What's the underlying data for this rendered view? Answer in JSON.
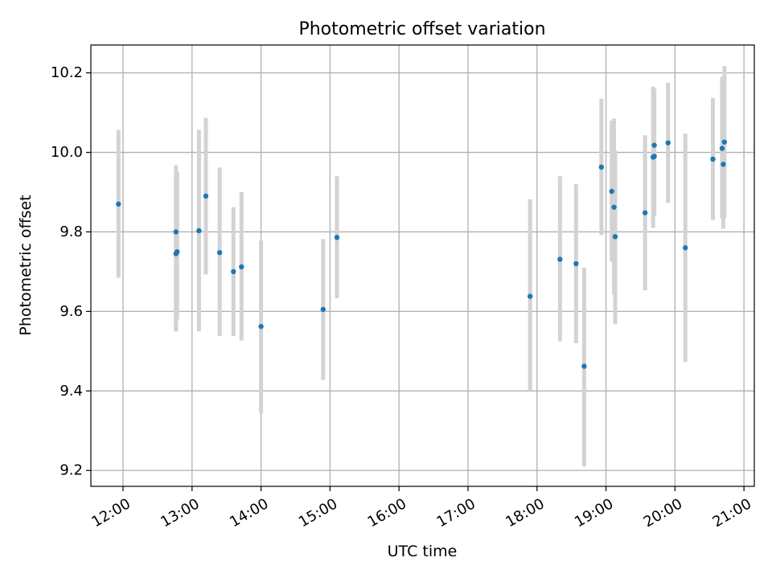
{
  "chart_data": {
    "type": "scatter",
    "title": "Photometric offset variation",
    "xlabel": "UTC time",
    "ylabel": "Photometric offset",
    "x_ticks": [
      "12:00",
      "13:00",
      "14:00",
      "15:00",
      "16:00",
      "17:00",
      "18:00",
      "19:00",
      "20:00",
      "21:00"
    ],
    "xlim": [
      "11:32",
      "21:09"
    ],
    "y_ticks": [
      "9.2",
      "9.4",
      "9.6",
      "9.8",
      "10.0",
      "10.2"
    ],
    "ylim": [
      9.16,
      10.27
    ],
    "grid": true,
    "colors": {
      "point": "#1f77b4",
      "errorbar": "#d3d3d3",
      "grid": "#b0b0b0",
      "axes": "#000000"
    },
    "points": [
      {
        "x": "11:56",
        "y": 9.87,
        "yerr_low": 9.685,
        "yerr_high": 10.057
      },
      {
        "x": "12:46",
        "y": 9.8,
        "yerr_low": 9.55,
        "yerr_high": 9.968
      },
      {
        "x": "12:46",
        "y": 9.745,
        "yerr_low": 9.55,
        "yerr_high": 9.94
      },
      {
        "x": "12:47",
        "y": 9.75,
        "yerr_low": 9.58,
        "yerr_high": 9.95
      },
      {
        "x": "13:06",
        "y": 9.803,
        "yerr_low": 9.55,
        "yerr_high": 10.057
      },
      {
        "x": "13:12",
        "y": 9.89,
        "yerr_low": 9.693,
        "yerr_high": 10.087
      },
      {
        "x": "13:24",
        "y": 9.748,
        "yerr_low": 9.538,
        "yerr_high": 9.962
      },
      {
        "x": "13:36",
        "y": 9.7,
        "yerr_low": 9.538,
        "yerr_high": 9.862
      },
      {
        "x": "13:43",
        "y": 9.712,
        "yerr_low": 9.527,
        "yerr_high": 9.9
      },
      {
        "x": "14:00",
        "y": 9.562,
        "yerr_low": 9.343,
        "yerr_high": 9.778
      },
      {
        "x": "14:54",
        "y": 9.605,
        "yerr_low": 9.428,
        "yerr_high": 9.782
      },
      {
        "x": "15:06",
        "y": 9.786,
        "yerr_low": 9.633,
        "yerr_high": 9.94
      },
      {
        "x": "17:54",
        "y": 9.638,
        "yerr_low": 9.4,
        "yerr_high": 9.882
      },
      {
        "x": "18:20",
        "y": 9.731,
        "yerr_low": 9.525,
        "yerr_high": 9.94
      },
      {
        "x": "18:34",
        "y": 9.72,
        "yerr_low": 9.52,
        "yerr_high": 9.92
      },
      {
        "x": "18:41",
        "y": 9.462,
        "yerr_low": 9.21,
        "yerr_high": 9.71
      },
      {
        "x": "18:56",
        "y": 9.963,
        "yerr_low": 9.792,
        "yerr_high": 10.135
      },
      {
        "x": "19:05",
        "y": 9.902,
        "yerr_low": 9.725,
        "yerr_high": 10.08
      },
      {
        "x": "19:07",
        "y": 9.862,
        "yerr_low": 9.643,
        "yerr_high": 10.085
      },
      {
        "x": "19:08",
        "y": 9.788,
        "yerr_low": 9.568,
        "yerr_high": 10.005
      },
      {
        "x": "19:34",
        "y": 9.848,
        "yerr_low": 9.653,
        "yerr_high": 10.043
      },
      {
        "x": "19:41",
        "y": 9.988,
        "yerr_low": 9.81,
        "yerr_high": 10.165
      },
      {
        "x": "19:42",
        "y": 9.99,
        "yerr_low": 9.84,
        "yerr_high": 10.158
      },
      {
        "x": "19:42",
        "y": 10.018,
        "yerr_low": 9.872,
        "yerr_high": 10.16
      },
      {
        "x": "19:54",
        "y": 10.024,
        "yerr_low": 9.873,
        "yerr_high": 10.175
      },
      {
        "x": "20:09",
        "y": 9.76,
        "yerr_low": 9.473,
        "yerr_high": 10.047
      },
      {
        "x": "20:33",
        "y": 9.983,
        "yerr_low": 9.83,
        "yerr_high": 10.137
      },
      {
        "x": "20:41",
        "y": 10.01,
        "yerr_low": 9.833,
        "yerr_high": 10.19
      },
      {
        "x": "20:42",
        "y": 9.97,
        "yerr_low": 9.808,
        "yerr_high": 10.13
      },
      {
        "x": "20:43",
        "y": 10.026,
        "yerr_low": 9.835,
        "yerr_high": 10.217
      }
    ]
  }
}
